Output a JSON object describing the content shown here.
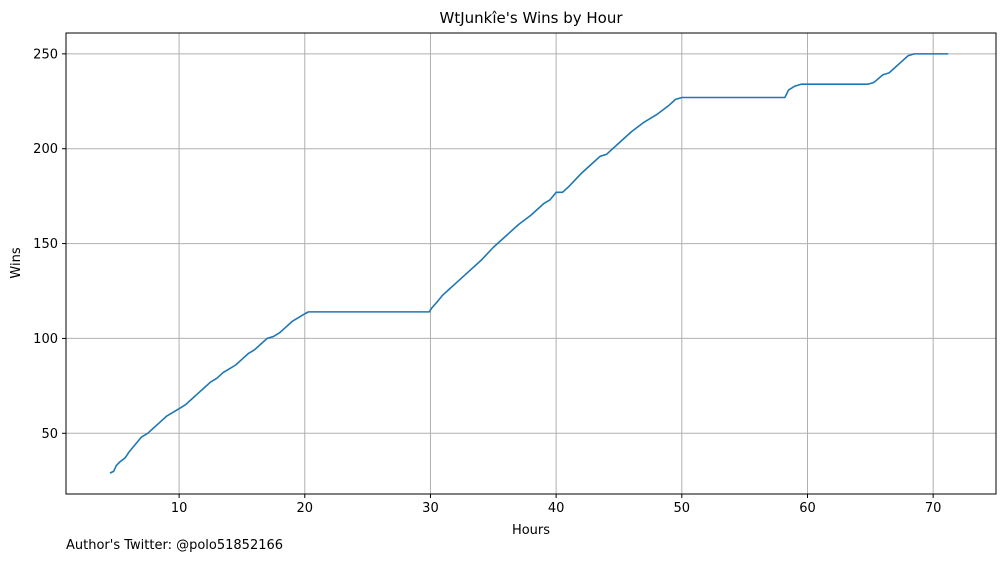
{
  "chart_data": {
    "type": "line",
    "title": "WtJunkîe's Wins by Hour",
    "xlabel": "Hours",
    "ylabel": "Wins",
    "xlim": [
      1,
      75
    ],
    "ylim": [
      18,
      261
    ],
    "xticks": [
      10,
      20,
      30,
      40,
      50,
      60,
      70
    ],
    "yticks": [
      50,
      100,
      150,
      200,
      250
    ],
    "grid": true,
    "line_color": "#1f77b4",
    "series": [
      {
        "x": [
          4.5,
          4.8,
          5.0,
          5.3,
          5.7,
          6.0,
          6.5,
          7.0,
          7.5,
          8.0,
          8.5,
          9.0,
          9.5,
          10.0,
          10.5,
          11.0,
          11.5,
          12.0,
          12.5,
          13.0,
          13.5,
          14.0,
          14.5,
          15.0,
          15.5,
          16.0,
          16.5,
          17.0,
          17.5,
          18.0,
          18.5,
          19.0,
          19.5,
          20.0,
          20.3,
          21.0,
          25.0,
          29.9,
          30.1,
          30.5,
          31.0,
          31.5,
          32.0,
          33.0,
          34.0,
          35.0,
          36.0,
          37.0,
          38.0,
          39.0,
          39.5,
          40.0,
          40.5,
          41.0,
          42.0,
          43.0,
          43.5,
          44.0,
          45.0,
          46.0,
          47.0,
          48.0,
          49.0,
          49.5,
          50.0,
          55.0,
          58.2,
          58.5,
          59.0,
          59.5,
          60.0,
          62.0,
          64.8,
          65.3,
          66.0,
          66.5,
          67.0,
          67.5,
          68.0,
          68.5,
          71.2
        ],
        "y": [
          29,
          30,
          33,
          35,
          37,
          40,
          44,
          48,
          50,
          53,
          56,
          59,
          61,
          63,
          65,
          68,
          71,
          74,
          77,
          79,
          82,
          84,
          86,
          89,
          92,
          94,
          97,
          100,
          101,
          103,
          106,
          109,
          111,
          113,
          114,
          114,
          114,
          114,
          116,
          119,
          123,
          126,
          129,
          135,
          141,
          148,
          154,
          160,
          165,
          171,
          173,
          177,
          177,
          180,
          187,
          193,
          196,
          197,
          203,
          209,
          214,
          218,
          223,
          226,
          227,
          227,
          227,
          231,
          233,
          234,
          234,
          234,
          234,
          235,
          239,
          240,
          243,
          246,
          249,
          250,
          250
        ]
      }
    ]
  },
  "footer": {
    "note": "Author's Twitter: @polo51852166"
  }
}
